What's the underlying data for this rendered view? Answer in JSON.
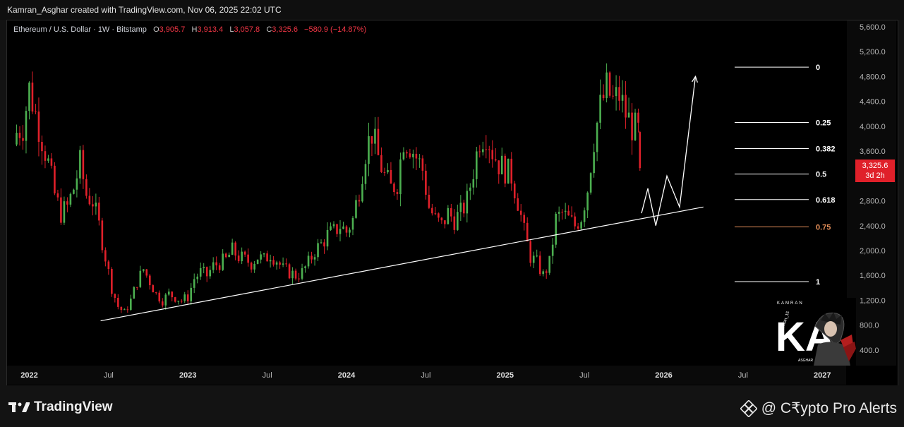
{
  "header": {
    "credit": "Kamran_Asghar created with TradingView.com, Nov 06, 2025 22:02 UTC"
  },
  "legend": {
    "symbol": "Ethereum / U.S. Dollar · 1W · Bitstamp",
    "o_label": "O",
    "o_value": "3,905.7",
    "h_label": "H",
    "h_value": "3,913.4",
    "l_label": "L",
    "l_value": "3,057.8",
    "c_label": "C",
    "c_value": "3,325.6",
    "change": "−580.9 (−14.87%)"
  },
  "price_tag": {
    "price": "3,325.6",
    "countdown": "3d 2h"
  },
  "footer": {
    "tv_brand": "TradingView",
    "watermark": "@ C₹ypto Pro Alerts"
  },
  "avatar_card": {
    "top_text": "KAMRAN",
    "initials": "KA",
    "handle": "@Kamran_15",
    "bottom_text": "ASGHAR"
  },
  "colors": {
    "up": "#4caf50",
    "down": "#e0202a",
    "fib_line": "#ffffff",
    "fib_075": "#e8915a",
    "trendline": "#ffffff",
    "background": "#000000"
  },
  "chart_data": {
    "type": "candlestick",
    "title": "Ethereum / U.S. Dollar · 1W · Bitstamp",
    "y_axis_ticks": [
      "400.0",
      "800.0",
      "1,200.0",
      "1,600.0",
      "2,000.0",
      "2,400.0",
      "2,800.0",
      "3,200.0",
      "3,600.0",
      "4,000.0",
      "4,400.0",
      "4,800.0",
      "5,200.0",
      "5,600.0"
    ],
    "ylim": [
      150,
      5700
    ],
    "x_axis_ticks": [
      "2022",
      "Jul",
      "2023",
      "Jul",
      "2024",
      "Jul",
      "2025",
      "Jul",
      "2026",
      "Jul",
      "2027"
    ],
    "fib_levels": [
      {
        "label": "0",
        "price": 4950
      },
      {
        "label": "0.25",
        "price": 4060
      },
      {
        "label": "0.382",
        "price": 3640
      },
      {
        "label": "0.5",
        "price": 3230
      },
      {
        "label": "0.618",
        "price": 2820
      },
      {
        "label": "0.75",
        "price": 2380
      },
      {
        "label": "1",
        "price": 1500
      }
    ],
    "price_path_close": [
      [
        2021.92,
        3900
      ],
      [
        2021.96,
        4000
      ],
      [
        2022.0,
        4600
      ],
      [
        2022.04,
        4200
      ],
      [
        2022.08,
        3800
      ],
      [
        2022.12,
        3400
      ],
      [
        2022.16,
        2900
      ],
      [
        2022.2,
        2600
      ],
      [
        2022.24,
        2700
      ],
      [
        2022.28,
        3000
      ],
      [
        2022.32,
        3400
      ],
      [
        2022.36,
        2900
      ],
      [
        2022.4,
        2800
      ],
      [
        2022.44,
        2400
      ],
      [
        2022.48,
        1900
      ],
      [
        2022.52,
        1400
      ],
      [
        2022.56,
        1100
      ],
      [
        2022.6,
        1000
      ],
      [
        2022.64,
        1200
      ],
      [
        2022.68,
        1500
      ],
      [
        2022.72,
        1700
      ],
      [
        2022.76,
        1500
      ],
      [
        2022.8,
        1300
      ],
      [
        2022.84,
        1200
      ],
      [
        2022.88,
        1300
      ],
      [
        2022.92,
        1250
      ],
      [
        2022.96,
        1200
      ],
      [
        2023.0,
        1250
      ],
      [
        2023.04,
        1550
      ],
      [
        2023.08,
        1650
      ],
      [
        2023.12,
        1600
      ],
      [
        2023.16,
        1750
      ],
      [
        2023.2,
        1800
      ],
      [
        2023.24,
        1850
      ],
      [
        2023.28,
        2000
      ],
      [
        2023.32,
        1900
      ],
      [
        2023.36,
        1850
      ],
      [
        2023.4,
        1800
      ],
      [
        2023.44,
        1900
      ],
      [
        2023.48,
        1850
      ],
      [
        2023.52,
        1950
      ],
      [
        2023.56,
        1850
      ],
      [
        2023.6,
        1700
      ],
      [
        2023.64,
        1650
      ],
      [
        2023.68,
        1600
      ],
      [
        2023.72,
        1650
      ],
      [
        2023.76,
        1800
      ],
      [
        2023.8,
        2000
      ],
      [
        2023.84,
        2100
      ],
      [
        2023.88,
        2250
      ],
      [
        2023.92,
        2300
      ],
      [
        2023.96,
        2400
      ],
      [
        2024.0,
        2300
      ],
      [
        2024.04,
        2500
      ],
      [
        2024.08,
        3000
      ],
      [
        2024.12,
        3600
      ],
      [
        2024.16,
        3900
      ],
      [
        2024.2,
        3500
      ],
      [
        2024.24,
        3200
      ],
      [
        2024.28,
        3000
      ],
      [
        2024.32,
        3100
      ],
      [
        2024.36,
        3800
      ],
      [
        2024.4,
        3700
      ],
      [
        2024.44,
        3500
      ],
      [
        2024.48,
        3300
      ],
      [
        2024.52,
        2700
      ],
      [
        2024.56,
        2500
      ],
      [
        2024.6,
        2400
      ],
      [
        2024.64,
        2600
      ],
      [
        2024.68,
        2500
      ],
      [
        2024.72,
        2600
      ],
      [
        2024.76,
        2800
      ],
      [
        2024.8,
        3300
      ],
      [
        2024.84,
        3800
      ],
      [
        2024.88,
        3900
      ],
      [
        2024.92,
        3600
      ],
      [
        2024.96,
        3400
      ],
      [
        2025.0,
        3300
      ],
      [
        2025.04,
        3200
      ],
      [
        2025.08,
        2800
      ],
      [
        2025.12,
        2300
      ],
      [
        2025.16,
        1900
      ],
      [
        2025.2,
        1800
      ],
      [
        2025.24,
        1600
      ],
      [
        2025.28,
        1800
      ],
      [
        2025.32,
        2500
      ],
      [
        2025.36,
        2600
      ],
      [
        2025.4,
        2500
      ],
      [
        2025.44,
        2400
      ],
      [
        2025.48,
        2550
      ],
      [
        2025.52,
        3000
      ],
      [
        2025.56,
        3800
      ],
      [
        2025.6,
        4300
      ],
      [
        2025.64,
        4600
      ],
      [
        2025.68,
        4400
      ],
      [
        2025.72,
        4500
      ],
      [
        2025.76,
        4200
      ],
      [
        2025.8,
        4000
      ],
      [
        2025.84,
        3900
      ],
      [
        2025.85,
        3325.6
      ]
    ],
    "projection_path": [
      [
        2025.86,
        2600
      ],
      [
        2025.9,
        3000
      ],
      [
        2025.95,
        2400
      ],
      [
        2026.02,
        3200
      ],
      [
        2026.1,
        2700
      ],
      [
        2026.2,
        4800
      ]
    ],
    "trendline": [
      [
        2022.45,
        870
      ],
      [
        2026.25,
        2700
      ]
    ],
    "last_price": 3325.6
  }
}
